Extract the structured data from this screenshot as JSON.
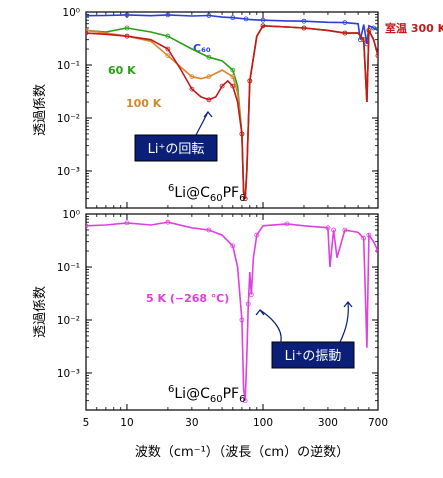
{
  "chart_data": [
    {
      "type": "line",
      "xscale": "log",
      "yscale": "log",
      "xlim": [
        5,
        700
      ],
      "ylim": [
        0.0002,
        1
      ],
      "ylabel": "透過係数",
      "yticks": [
        "10⁰",
        "10⁻¹",
        "10⁻²",
        "10⁻³"
      ],
      "compound": {
        "pre": "6",
        "a": "Li@C",
        "sub1": "60",
        "b": "PF",
        "sub2": "6"
      },
      "annotation": {
        "text": "Li⁺の回転",
        "bg_color": "#0b1f78"
      },
      "series": [
        {
          "name": "C₆₀",
          "color": "#2b3fd6",
          "label_color": "#2b3fd6",
          "x": [
            5,
            7,
            10,
            15,
            20,
            30,
            40,
            50,
            60,
            70,
            75,
            80,
            100,
            150,
            200,
            300,
            400,
            500,
            520,
            550,
            580,
            600,
            650,
            700
          ],
          "y": [
            0.85,
            0.86,
            0.88,
            0.85,
            0.88,
            0.84,
            0.86,
            0.8,
            0.78,
            0.75,
            0.74,
            0.72,
            0.7,
            0.68,
            0.67,
            0.64,
            0.63,
            0.6,
            0.3,
            0.58,
            0.25,
            0.55,
            0.5,
            0.45
          ]
        },
        {
          "name": "60 K",
          "color": "#2a9e17",
          "label_color": "#2a9e17",
          "x": [
            5,
            7,
            10,
            15,
            20,
            30,
            40,
            50,
            60,
            65,
            70,
            72,
            74,
            76,
            80,
            90,
            100,
            150,
            200,
            300,
            400,
            500,
            550,
            580,
            600,
            650,
            700
          ],
          "y": [
            0.45,
            0.42,
            0.5,
            0.42,
            0.35,
            0.2,
            0.14,
            0.12,
            0.08,
            0.04,
            0.005,
            0.0004,
            0.0003,
            0.001,
            0.05,
            0.35,
            0.55,
            0.52,
            0.5,
            0.45,
            0.4,
            0.4,
            0.3,
            0.02,
            0.45,
            0.3,
            0.15
          ]
        },
        {
          "name": "100 K",
          "color": "#d9862a",
          "label_color": "#d9862a",
          "x": [
            5,
            7,
            10,
            15,
            20,
            25,
            30,
            35,
            40,
            50,
            60,
            65,
            70,
            72,
            74,
            76,
            80,
            90,
            100,
            150,
            200,
            300,
            400,
            500,
            550,
            580,
            600,
            650,
            700
          ],
          "y": [
            0.45,
            0.4,
            0.35,
            0.28,
            0.15,
            0.09,
            0.06,
            0.055,
            0.06,
            0.08,
            0.06,
            0.03,
            0.005,
            0.0004,
            0.0003,
            0.001,
            0.05,
            0.35,
            0.55,
            0.52,
            0.5,
            0.45,
            0.4,
            0.4,
            0.3,
            0.02,
            0.45,
            0.3,
            0.15
          ]
        },
        {
          "name": "室温 300 K",
          "color": "#c4191b",
          "label_color": "#c4191b",
          "x": [
            5,
            7,
            10,
            15,
            20,
            25,
            30,
            35,
            40,
            45,
            50,
            55,
            60,
            65,
            70,
            72,
            74,
            76,
            80,
            90,
            100,
            150,
            200,
            300,
            400,
            500,
            550,
            580,
            600,
            650,
            700
          ],
          "y": [
            0.4,
            0.38,
            0.35,
            0.3,
            0.2,
            0.08,
            0.035,
            0.025,
            0.022,
            0.025,
            0.04,
            0.05,
            0.04,
            0.02,
            0.005,
            0.0004,
            0.0003,
            0.001,
            0.05,
            0.35,
            0.55,
            0.52,
            0.5,
            0.45,
            0.4,
            0.4,
            0.3,
            0.02,
            0.45,
            0.3,
            0.15
          ]
        }
      ]
    },
    {
      "type": "line",
      "xscale": "log",
      "yscale": "log",
      "xlim": [
        5,
        700
      ],
      "ylim": [
        0.0002,
        1
      ],
      "ylabel": "透過係数",
      "xlabel": "波数（cm⁻¹）（波長（cm）の逆数）",
      "xticks": [
        "5",
        "10",
        "30",
        "100",
        "300",
        "700"
      ],
      "yticks": [
        "10⁰",
        "10⁻¹",
        "10⁻²",
        "10⁻³"
      ],
      "compound": {
        "pre": "6",
        "a": "Li@C",
        "sub1": "60",
        "b": "PF",
        "sub2": "6"
      },
      "annotation": {
        "text": "Li⁺の振動",
        "bg_color": "#0b1f78"
      },
      "series": [
        {
          "name": "5 K (−268 ℃)",
          "color": "#e040e0",
          "label_color": "#e040e0",
          "x": [
            5,
            7,
            10,
            15,
            20,
            30,
            40,
            50,
            60,
            65,
            70,
            72,
            74,
            76,
            78,
            80,
            82,
            85,
            90,
            100,
            150,
            200,
            300,
            310,
            330,
            350,
            400,
            500,
            550,
            580,
            600,
            650,
            700
          ],
          "y": [
            0.6,
            0.62,
            0.68,
            0.62,
            0.7,
            0.55,
            0.5,
            0.4,
            0.25,
            0.1,
            0.01,
            0.0005,
            0.0003,
            0.002,
            0.02,
            0.08,
            0.03,
            0.15,
            0.4,
            0.6,
            0.65,
            0.6,
            0.55,
            0.1,
            0.5,
            0.15,
            0.5,
            0.45,
            0.35,
            0.003,
            0.4,
            0.3,
            0.2
          ]
        }
      ]
    }
  ]
}
